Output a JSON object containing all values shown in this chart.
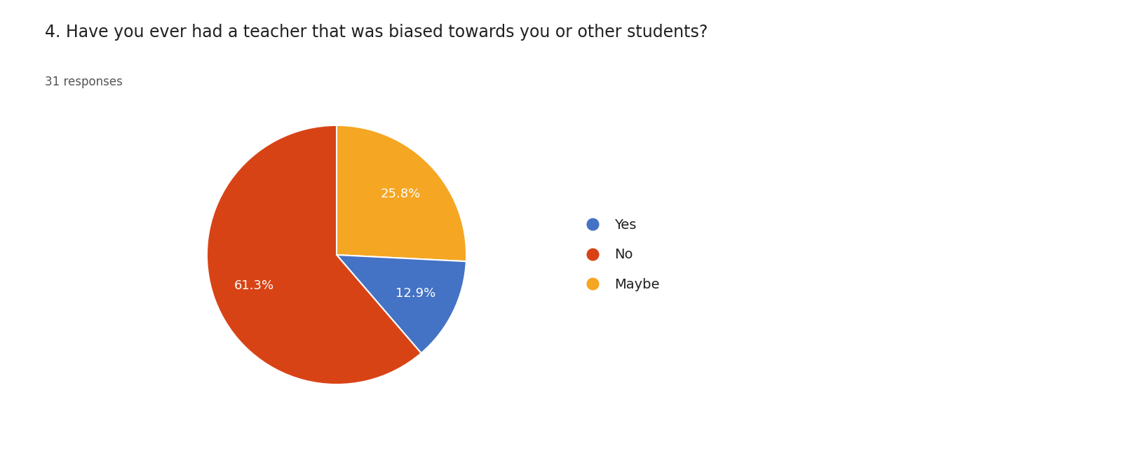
{
  "title": "4. Have you ever had a teacher that was biased towards you or other students?",
  "subtitle": "31 responses",
  "labels_order": [
    "Maybe",
    "Yes",
    "No"
  ],
  "values_order": [
    25.8,
    12.9,
    61.3
  ],
  "colors_order": [
    "#F5A623",
    "#4472C4",
    "#D84315"
  ],
  "legend_labels": [
    "Yes",
    "No",
    "Maybe"
  ],
  "legend_colors": [
    "#4472C4",
    "#D84315",
    "#F5A623"
  ],
  "text_color": "#FFFFFF",
  "bg_color": "#FFFFFF",
  "title_fontsize": 17,
  "subtitle_fontsize": 12,
  "pct_fontsize": 13,
  "legend_fontsize": 14,
  "startangle": 90
}
